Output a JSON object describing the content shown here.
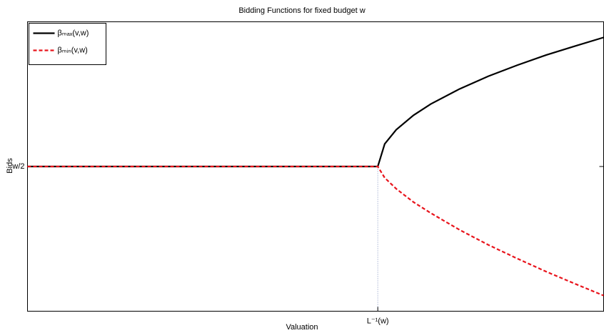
{
  "chart_data": {
    "type": "line",
    "title": "Bidding Functions for fixed budget w",
    "x_label": "Valuation",
    "y_label": "Bids",
    "x": [
      0,
      0.608,
      0.62,
      0.64,
      0.67,
      0.7,
      0.75,
      0.8,
      0.85,
      0.9,
      0.95,
      1.0
    ],
    "series": [
      {
        "name": "βₘₐₓ(v,w)",
        "color": "#000000",
        "dashed": false,
        "values": [
          0.5,
          0.5,
          0.578,
          0.627,
          0.677,
          0.716,
          0.768,
          0.812,
          0.85,
          0.885,
          0.916,
          0.946
        ]
      },
      {
        "name": "βₘᵢₙ(v,w)",
        "color": "#e8141c",
        "dashed": true,
        "values": [
          0.5,
          0.5,
          0.461,
          0.423,
          0.377,
          0.339,
          0.281,
          0.229,
          0.182,
          0.137,
          0.095,
          0.054
        ]
      }
    ],
    "xlim": [
      0,
      1
    ],
    "ylim": [
      0,
      1
    ],
    "xticks": [
      {
        "value": 0.608,
        "label": "L⁻¹(w)"
      }
    ],
    "yticks": [
      {
        "value": 0.5,
        "label": "w/2"
      }
    ],
    "legend": "upper left"
  }
}
